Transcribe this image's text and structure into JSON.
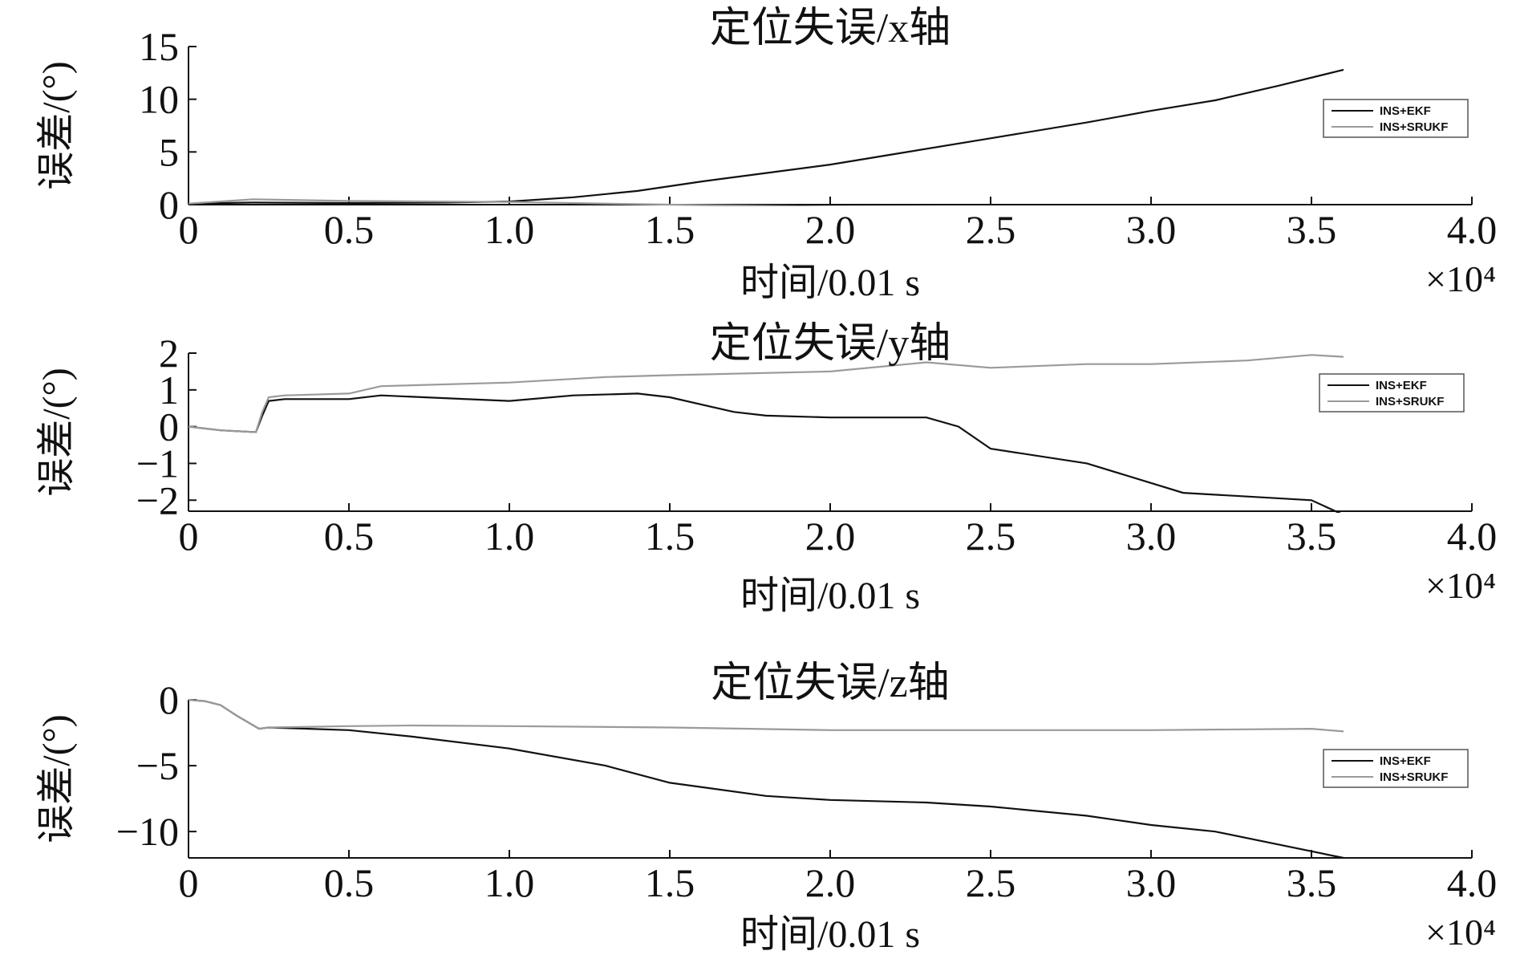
{
  "chart_data": [
    {
      "type": "line",
      "title": "定位失误/x轴",
      "xlabel": "时间/0.01 s",
      "ylabel": "误差/(°)",
      "x_multiplier": "×10⁴",
      "xlim": [
        0,
        4.0
      ],
      "ylim": [
        0,
        15
      ],
      "xticks": [
        "0",
        "0.5",
        "1.0",
        "1.5",
        "2.0",
        "2.5",
        "3.0",
        "3.5",
        "4.0"
      ],
      "yticks": [
        "0",
        "5",
        "10",
        "15"
      ],
      "grid": false,
      "legend_position": "right",
      "series": [
        {
          "name": "INS+EKF",
          "color": "#111111",
          "x": [
            0,
            0.2,
            0.5,
            0.8,
            1.0,
            1.2,
            1.4,
            1.6,
            1.8,
            2.0,
            2.2,
            2.5,
            2.8,
            3.0,
            3.2,
            3.4,
            3.6
          ],
          "y": [
            0.1,
            0.2,
            0.15,
            0.2,
            0.3,
            0.7,
            1.3,
            2.2,
            3.0,
            3.8,
            4.8,
            6.3,
            7.8,
            8.9,
            9.9,
            11.3,
            12.8
          ]
        },
        {
          "name": "INS+SRUKF",
          "color": "#9a9a9a",
          "x": [
            0,
            0.2,
            0.5,
            1.0,
            1.5,
            2.0,
            2.5,
            3.0,
            3.6
          ],
          "y": [
            0.1,
            0.5,
            0.35,
            0.25,
            0.0,
            -0.2,
            -0.25,
            -0.3,
            -0.35
          ]
        }
      ]
    },
    {
      "type": "line",
      "title": "定位失误/y轴",
      "xlabel": "时间/0.01 s",
      "ylabel": "误差/(°)",
      "x_multiplier": "×10⁴",
      "xlim": [
        0,
        4.0
      ],
      "ylim": [
        -2.3,
        2
      ],
      "xticks": [
        "0",
        "0.5",
        "1.0",
        "1.5",
        "2.0",
        "2.5",
        "3.0",
        "3.5",
        "4.0"
      ],
      "yticks": [
        "−2",
        "−1",
        "0",
        "1",
        "2"
      ],
      "ytick_values": [
        -2,
        -1,
        0,
        1,
        2
      ],
      "grid": false,
      "legend_position": "right",
      "series": [
        {
          "name": "INS+EKF",
          "color": "#111111",
          "x": [
            0,
            0.1,
            0.21,
            0.23,
            0.25,
            0.3,
            0.5,
            0.6,
            1.0,
            1.2,
            1.4,
            1.5,
            1.7,
            1.8,
            2.0,
            2.3,
            2.4,
            2.5,
            2.8,
            3.1,
            3.3,
            3.5,
            3.6
          ],
          "y": [
            0,
            -0.1,
            -0.15,
            0.3,
            0.7,
            0.75,
            0.75,
            0.85,
            0.7,
            0.85,
            0.9,
            0.8,
            0.4,
            0.3,
            0.25,
            0.25,
            0.0,
            -0.6,
            -1.0,
            -1.8,
            -1.9,
            -2.0,
            -2.4
          ]
        },
        {
          "name": "INS+SRUKF",
          "color": "#9a9a9a",
          "x": [
            0,
            0.1,
            0.21,
            0.23,
            0.25,
            0.3,
            0.5,
            0.6,
            1.0,
            1.3,
            1.5,
            2.0,
            2.3,
            2.5,
            2.8,
            3.0,
            3.3,
            3.5,
            3.6
          ],
          "y": [
            0,
            -0.1,
            -0.15,
            0.4,
            0.8,
            0.85,
            0.9,
            1.1,
            1.2,
            1.35,
            1.4,
            1.5,
            1.75,
            1.6,
            1.7,
            1.7,
            1.8,
            1.95,
            1.9
          ]
        }
      ]
    },
    {
      "type": "line",
      "title": "定位失误/z轴",
      "xlabel": "时间/0.01 s",
      "ylabel": "误差/(°)",
      "x_multiplier": "×10⁴",
      "xlim": [
        0,
        4.0
      ],
      "ylim": [
        -12,
        0
      ],
      "xticks": [
        "0",
        "0.5",
        "1.0",
        "1.5",
        "2.0",
        "2.5",
        "3.0",
        "3.5",
        "4.0"
      ],
      "yticks": [
        "−10",
        "−5",
        "0"
      ],
      "ytick_values": [
        -10,
        -5,
        0
      ],
      "grid": false,
      "legend_position": "right",
      "series": [
        {
          "name": "INS+EKF",
          "color": "#111111",
          "x": [
            0,
            0.05,
            0.1,
            0.15,
            0.22,
            0.25,
            0.5,
            0.7,
            1.0,
            1.3,
            1.5,
            1.8,
            2.0,
            2.3,
            2.5,
            2.8,
            3.0,
            3.2,
            3.4,
            3.6
          ],
          "y": [
            0,
            -0.1,
            -0.4,
            -1.2,
            -2.2,
            -2.1,
            -2.3,
            -2.8,
            -3.7,
            -5.0,
            -6.3,
            -7.3,
            -7.6,
            -7.8,
            -8.1,
            -8.8,
            -9.5,
            -10.0,
            -11.0,
            -12.0
          ]
        },
        {
          "name": "INS+SRUKF",
          "color": "#9a9a9a",
          "x": [
            0,
            0.05,
            0.1,
            0.15,
            0.22,
            0.25,
            0.5,
            0.7,
            1.0,
            1.5,
            2.0,
            2.5,
            3.0,
            3.5,
            3.6
          ],
          "y": [
            0,
            -0.1,
            -0.4,
            -1.2,
            -2.2,
            -2.1,
            -2.0,
            -1.95,
            -2.0,
            -2.1,
            -2.3,
            -2.3,
            -2.3,
            -2.2,
            -2.4
          ]
        }
      ]
    }
  ]
}
